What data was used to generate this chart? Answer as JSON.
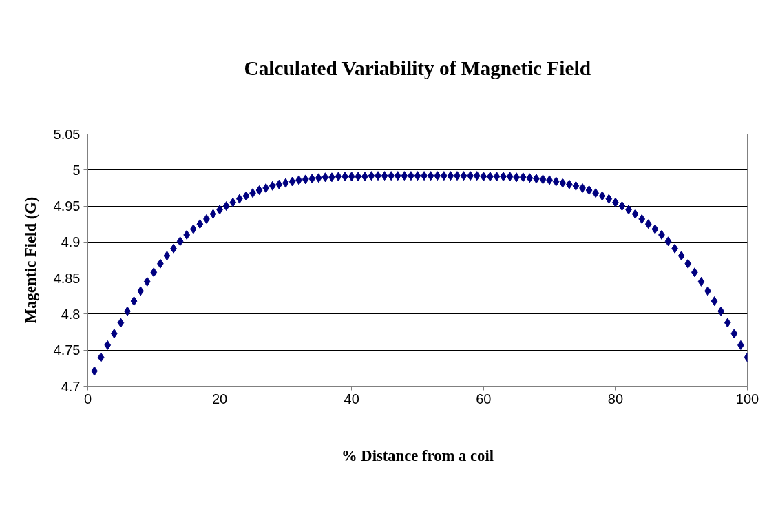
{
  "chart_data": {
    "type": "scatter",
    "title": "Calculated Variability of Magnetic Field",
    "xlabel": "% Distance from a coil",
    "ylabel": "Magentic Field (G)",
    "x": [
      1,
      2,
      3,
      4,
      5,
      6,
      7,
      8,
      9,
      10,
      11,
      12,
      13,
      14,
      15,
      16,
      17,
      18,
      19,
      20,
      21,
      22,
      23,
      24,
      25,
      26,
      27,
      28,
      29,
      30,
      31,
      32,
      33,
      34,
      35,
      36,
      37,
      38,
      39,
      40,
      41,
      42,
      43,
      44,
      45,
      46,
      47,
      48,
      49,
      50,
      51,
      52,
      53,
      54,
      55,
      56,
      57,
      58,
      59,
      60,
      61,
      62,
      63,
      64,
      65,
      66,
      67,
      68,
      69,
      70,
      71,
      72,
      73,
      74,
      75,
      76,
      77,
      78,
      79,
      80,
      81,
      82,
      83,
      84,
      85,
      86,
      87,
      88,
      89,
      90,
      91,
      92,
      93,
      94,
      95,
      96,
      97,
      98,
      99,
      100
    ],
    "series": [
      {
        "color": "#000080",
        "values": [
          4.721,
          4.74,
          4.757,
          4.773,
          4.788,
          4.804,
          4.818,
          4.832,
          4.845,
          4.858,
          4.87,
          4.881,
          4.891,
          4.901,
          4.91,
          4.918,
          4.925,
          4.932,
          4.939,
          4.945,
          4.95,
          4.955,
          4.96,
          4.964,
          4.968,
          4.972,
          4.975,
          4.978,
          4.98,
          4.982,
          4.984,
          4.986,
          4.987,
          4.988,
          4.989,
          4.99,
          4.99,
          4.991,
          4.991,
          4.991,
          4.991,
          4.991,
          4.992,
          4.992,
          4.992,
          4.992,
          4.992,
          4.992,
          4.992,
          4.992,
          4.992,
          4.992,
          4.992,
          4.992,
          4.992,
          4.992,
          4.992,
          4.992,
          4.992,
          4.991,
          4.991,
          4.991,
          4.991,
          4.991,
          4.99,
          4.99,
          4.989,
          4.988,
          4.987,
          4.986,
          4.984,
          4.982,
          4.98,
          4.978,
          4.975,
          4.972,
          4.968,
          4.964,
          4.96,
          4.955,
          4.95,
          4.945,
          4.939,
          4.932,
          4.925,
          4.918,
          4.91,
          4.901,
          4.891,
          4.881,
          4.87,
          4.858,
          4.845,
          4.832,
          4.818,
          4.804,
          4.788,
          4.773,
          4.757,
          4.74
        ]
      }
    ],
    "xlim": [
      0,
      100
    ],
    "xticks": [
      0,
      20,
      40,
      60,
      80,
      100
    ],
    "ylim": [
      4.7,
      5.05
    ],
    "yticks": [
      4.7,
      4.75,
      4.8,
      4.85,
      4.9,
      4.95,
      5,
      5.05
    ],
    "grid": "y",
    "marker": "diamond"
  }
}
